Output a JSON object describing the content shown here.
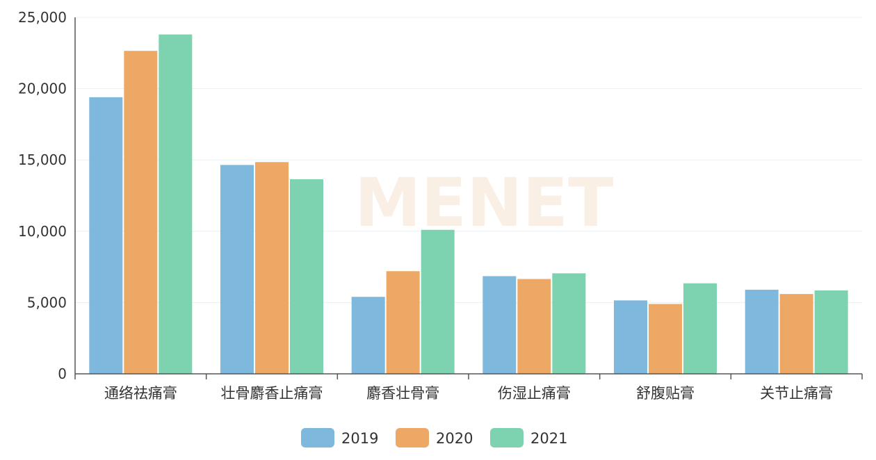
{
  "chart_data": {
    "type": "bar",
    "categories": [
      "通络祛痛膏",
      "壮骨麝香止痛膏",
      "麝香壮骨膏",
      "伤湿止痛膏",
      "舒腹贴膏",
      "关节止痛膏"
    ],
    "series": [
      {
        "name": "2019",
        "color": "#7fb8dd",
        "values": [
          19400,
          14650,
          5400,
          6850,
          5150,
          5900
        ]
      },
      {
        "name": "2020",
        "color": "#eda866",
        "values": [
          22650,
          14850,
          7200,
          6650,
          4900,
          5600
        ]
      },
      {
        "name": "2021",
        "color": "#7dd3b0",
        "values": [
          23800,
          13650,
          10100,
          7050,
          6350,
          5850
        ]
      }
    ],
    "ylim": [
      0,
      25000
    ],
    "yticks": [
      "0",
      "5,000",
      "10,000",
      "15,000",
      "20,000",
      "25,000"
    ],
    "ytick_values": [
      0,
      5000,
      10000,
      15000,
      20000,
      25000
    ],
    "grid": true,
    "legend_position": "bottom-center",
    "watermark": "MENET"
  }
}
